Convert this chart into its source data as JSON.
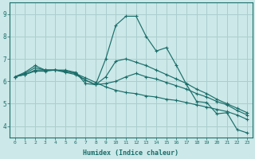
{
  "xlabel": "Humidex (Indice chaleur)",
  "background_color": "#cce8e8",
  "grid_color": "#aacece",
  "line_color": "#1a6e6a",
  "spine_color": "#1a6e6a",
  "xlim": [
    -0.5,
    23.5
  ],
  "ylim": [
    3.5,
    9.5
  ],
  "xticks": [
    0,
    1,
    2,
    3,
    4,
    5,
    6,
    7,
    8,
    9,
    10,
    11,
    12,
    13,
    14,
    15,
    16,
    17,
    18,
    19,
    20,
    21,
    22,
    23
  ],
  "yticks": [
    4,
    5,
    6,
    7,
    8,
    9
  ],
  "lines": [
    {
      "x": [
        0,
        1,
        2,
        3,
        4,
        5,
        6,
        7,
        8,
        9,
        10,
        11,
        12,
        13,
        14,
        15,
        16,
        17,
        18,
        19,
        20,
        21,
        22,
        23
      ],
      "y": [
        6.2,
        6.4,
        6.7,
        6.5,
        6.5,
        6.5,
        6.4,
        5.9,
        5.85,
        7.0,
        8.5,
        8.9,
        8.9,
        8.0,
        7.35,
        7.5,
        6.7,
        5.85,
        5.1,
        5.05,
        4.55,
        4.6,
        3.85,
        3.7
      ]
    },
    {
      "x": [
        0,
        1,
        2,
        3,
        4,
        5,
        6,
        7,
        8,
        9,
        10,
        11,
        12,
        13,
        14,
        15,
        16,
        17,
        18,
        19,
        20,
        21,
        22,
        23
      ],
      "y": [
        6.2,
        6.35,
        6.6,
        6.5,
        6.5,
        6.4,
        6.3,
        6.05,
        5.85,
        6.2,
        6.9,
        7.0,
        6.85,
        6.7,
        6.5,
        6.3,
        6.1,
        5.9,
        5.65,
        5.45,
        5.2,
        5.0,
        4.8,
        4.6
      ]
    },
    {
      "x": [
        0,
        1,
        2,
        3,
        4,
        5,
        6,
        7,
        8,
        9,
        10,
        11,
        12,
        13,
        14,
        15,
        16,
        17,
        18,
        19,
        20,
        21,
        22,
        23
      ],
      "y": [
        6.2,
        6.3,
        6.5,
        6.5,
        6.5,
        6.45,
        6.35,
        6.05,
        5.85,
        5.9,
        6.0,
        6.2,
        6.35,
        6.2,
        6.1,
        5.95,
        5.8,
        5.65,
        5.45,
        5.3,
        5.1,
        4.95,
        4.7,
        4.5
      ]
    },
    {
      "x": [
        0,
        1,
        2,
        3,
        4,
        5,
        6,
        7,
        8,
        9,
        10,
        11,
        12,
        13,
        14,
        15,
        16,
        17,
        18,
        19,
        20,
        21,
        22,
        23
      ],
      "y": [
        6.2,
        6.3,
        6.45,
        6.45,
        6.5,
        6.45,
        6.35,
        6.15,
        5.95,
        5.75,
        5.6,
        5.5,
        5.45,
        5.35,
        5.3,
        5.2,
        5.15,
        5.05,
        4.95,
        4.85,
        4.75,
        4.65,
        4.5,
        4.3
      ]
    }
  ]
}
